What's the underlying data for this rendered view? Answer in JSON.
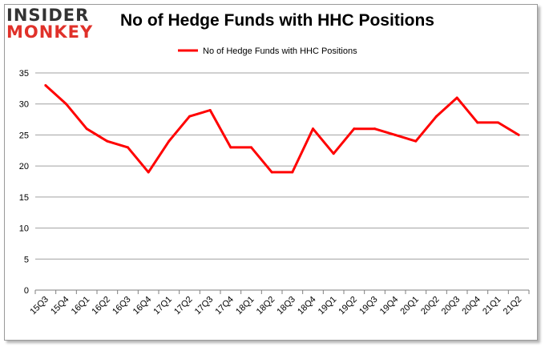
{
  "logo": {
    "line1": "INSIDER",
    "line2": "MONKEY"
  },
  "chart_data": {
    "type": "line",
    "title": "No of Hedge Funds with HHC Positions",
    "xlabel": "",
    "ylabel": "",
    "x": [
      "15Q3",
      "15Q4",
      "16Q1",
      "16Q2",
      "16Q3",
      "16Q4",
      "17Q1",
      "17Q2",
      "17Q3",
      "17Q4",
      "18Q1",
      "18Q2",
      "18Q3",
      "18Q4",
      "19Q1",
      "19Q2",
      "19Q3",
      "19Q4",
      "20Q1",
      "20Q2",
      "20Q3",
      "20Q4",
      "21Q1",
      "21Q2"
    ],
    "series": [
      {
        "name": "No of Hedge Funds with HHC Positions",
        "color": "#ff0000",
        "values": [
          33,
          30,
          26,
          24,
          23,
          19,
          24,
          28,
          29,
          23,
          23,
          19,
          19,
          26,
          22,
          26,
          26,
          25,
          24,
          28,
          31,
          27,
          27,
          25
        ]
      }
    ],
    "ylim": [
      0,
      35
    ],
    "yticks": [
      0,
      5,
      10,
      15,
      20,
      25,
      30,
      35
    ],
    "grid": true,
    "legend": "top-center"
  }
}
